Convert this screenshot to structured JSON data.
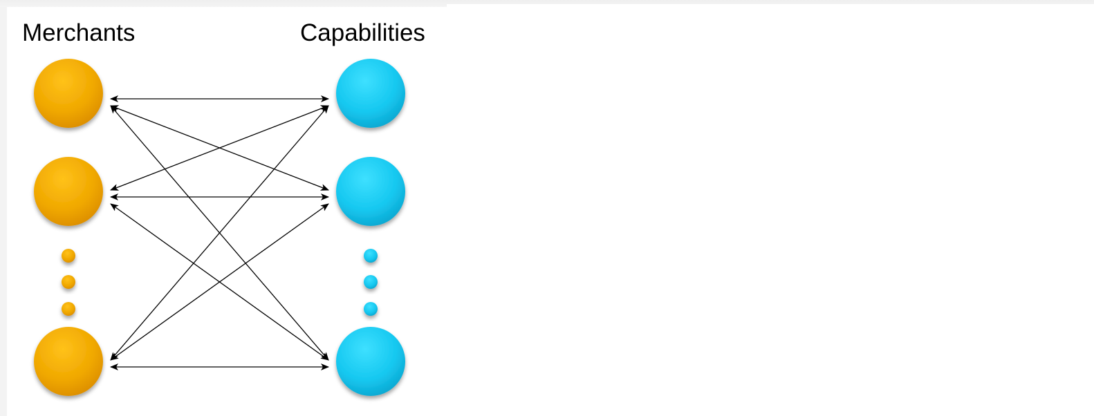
{
  "diagram": {
    "left_column": {
      "title": "Merchants",
      "color": "#f0a800",
      "color_dark": "#d98a00",
      "nodes": [
        "merchant-1",
        "merchant-2",
        "merchant-n"
      ]
    },
    "right_column": {
      "title": "Capabilities",
      "color": "#16c8f0",
      "color_dark": "#0aa2cc",
      "nodes": [
        "capability-1",
        "capability-2",
        "capability-n"
      ]
    },
    "ellipsis_dots_per_column": 3,
    "connections": {
      "pattern": "all-to-all",
      "direction": "bidirectional",
      "arrow_color": "#000000"
    }
  }
}
